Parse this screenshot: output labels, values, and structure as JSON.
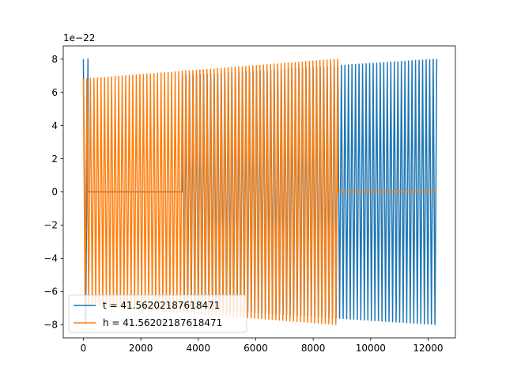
{
  "chart_data": {
    "type": "line",
    "title": "",
    "xlabel": "",
    "ylabel": "",
    "y_offset_text": "1e−22",
    "xlim": [
      -700,
      12950
    ],
    "ylim": [
      -8.8,
      8.8
    ],
    "x_ticks": [
      0,
      2000,
      4000,
      6000,
      8000,
      10000,
      12000
    ],
    "x_tick_labels": [
      "0",
      "2000",
      "4000",
      "6000",
      "8000",
      "10000",
      "12000"
    ],
    "y_ticks": [
      -8,
      -6,
      -4,
      -2,
      0,
      2,
      4,
      6,
      8
    ],
    "y_tick_labels": [
      "−8",
      "−6",
      "−4",
      "−2",
      "0",
      "2",
      "4",
      "6",
      "8"
    ],
    "grid": false,
    "legend_position": "lower-left",
    "series": [
      {
        "name": "t = 41.56202187618471",
        "color": "#1f77b4",
        "segments": [
          {
            "kind": "oscillation",
            "x_start": 0,
            "x_end": 160,
            "cycles": 1,
            "amp_start": 8.0,
            "amp_end": 8.0
          },
          {
            "kind": "flat",
            "x_start": 160,
            "x_end": 3450,
            "value": 0
          },
          {
            "kind": "oscillation",
            "x_start": 3450,
            "x_end": 12300,
            "cycles": 72,
            "amp_start": 7.0,
            "amp_end": 8.0
          }
        ]
      },
      {
        "name": "h = 41.56202187618471",
        "color": "#ff7f0e",
        "segments": [
          {
            "kind": "oscillation",
            "x_start": 0,
            "x_end": 8850,
            "cycles": 72,
            "amp_start": 6.8,
            "amp_end": 8.0
          },
          {
            "kind": "flat",
            "x_start": 8850,
            "x_end": 12300,
            "value": 0
          }
        ]
      }
    ]
  }
}
